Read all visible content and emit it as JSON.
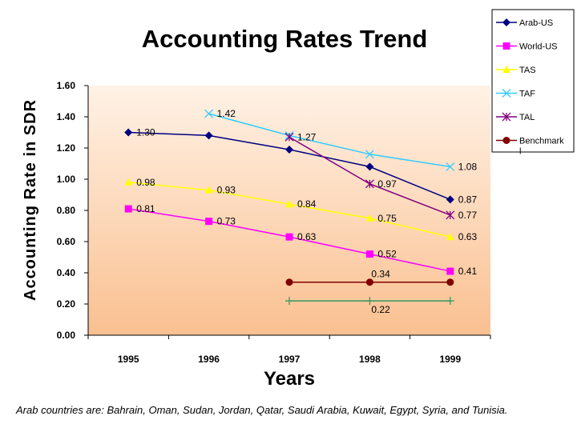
{
  "chart_data": {
    "type": "line",
    "title": "Accounting Rates Trend",
    "xlabel": "Years",
    "ylabel": "Accounting Rate in SDR",
    "categories": [
      "1995",
      "1996",
      "1997",
      "1998",
      "1999"
    ],
    "ylim": [
      0,
      1.6
    ],
    "yticks": [
      "0.00",
      "0.20",
      "0.40",
      "0.60",
      "0.80",
      "1.00",
      "1.20",
      "1.40",
      "1.60"
    ],
    "series": [
      {
        "name": "Arab-US",
        "color": "#000080",
        "marker": "diamond",
        "values": [
          1.3,
          1.28,
          1.19,
          1.08,
          0.87
        ],
        "labels": [
          "1.30",
          "",
          "",
          "",
          "0.87"
        ]
      },
      {
        "name": "World-US",
        "color": "#ff00ff",
        "marker": "square",
        "values": [
          0.81,
          0.73,
          0.63,
          0.52,
          0.41
        ],
        "labels": [
          "0.81",
          "0.73",
          "0.63",
          "0.52",
          "0.41"
        ]
      },
      {
        "name": "TAS",
        "color": "#ffff00",
        "marker": "triangle",
        "values": [
          0.98,
          0.93,
          0.84,
          0.75,
          0.63
        ],
        "labels": [
          "0.98",
          "0.93",
          "0.84",
          "0.75",
          "0.63"
        ]
      },
      {
        "name": "TAF",
        "color": "#33ccff",
        "marker": "x",
        "values": [
          null,
          1.42,
          1.28,
          1.16,
          1.08
        ],
        "labels": [
          "",
          "1.42",
          "",
          "",
          "1.08"
        ]
      },
      {
        "name": "TAL",
        "color": "#800080",
        "marker": "star",
        "values": [
          null,
          null,
          1.27,
          0.97,
          0.77
        ],
        "labels": [
          "",
          "",
          "1.27",
          "0.97",
          "0.77"
        ]
      },
      {
        "name": "Benchmark",
        "legend_label": "Benchmark\nl",
        "color": "#800000",
        "marker": "circle",
        "values": [
          null,
          null,
          0.34,
          0.34,
          0.34
        ],
        "labels": [
          "",
          "",
          "",
          "0.34",
          ""
        ]
      },
      {
        "name": "",
        "color": "#339966",
        "marker": "plus",
        "in_legend": false,
        "values": [
          null,
          null,
          0.22,
          0.22,
          0.22
        ],
        "labels": [
          "",
          "",
          "",
          "0.22",
          ""
        ]
      }
    ],
    "plot_background": [
      "#fff2e6",
      "#fac090"
    ],
    "legend_position": "top-right",
    "footnote": "Arab countries are: Bahrain, Oman, Sudan, Jordan, Qatar, Saudi Arabia, Kuwait, Egypt, Syria, and Tunisia."
  }
}
